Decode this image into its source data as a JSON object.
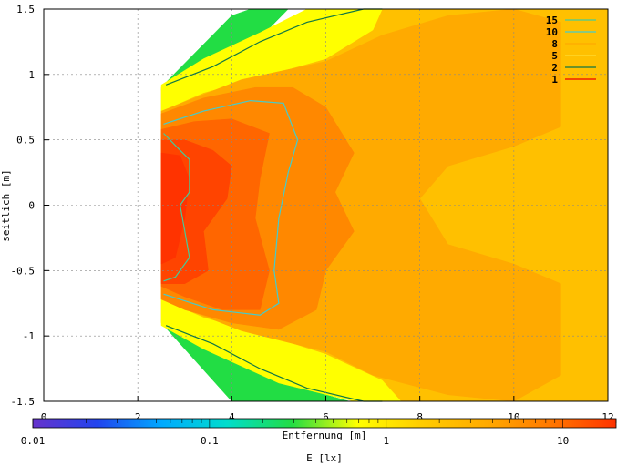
{
  "chart_data": {
    "type": "heatmap",
    "xlabel": "Entfernung [m]",
    "ylabel": "seitlich [m]",
    "xlim": [
      0,
      12
    ],
    "ylim": [
      -1.5,
      1.5
    ],
    "x_ticks": [
      "0",
      "2",
      "4",
      "6",
      "8",
      "10",
      "12"
    ],
    "x_tick_values": [
      0,
      2,
      4,
      6,
      8,
      10,
      12
    ],
    "y_ticks": [
      "1.5",
      "1",
      "0.5",
      "0",
      "-0.5",
      "-1",
      "-1.5"
    ],
    "y_tick_values": [
      1.5,
      1,
      0.5,
      0,
      -0.5,
      -1,
      -1.5
    ],
    "grid": true,
    "legend_position": "top-right",
    "legend": [
      {
        "label": "15",
        "color": "#44cc99"
      },
      {
        "label": "10",
        "color": "#44cccc"
      },
      {
        "label": "8",
        "color": "#ffaa00"
      },
      {
        "label": "5",
        "color": "#ffdd33"
      },
      {
        "label": "2",
        "color": "#117744"
      },
      {
        "label": "1",
        "color": "#ee0000"
      }
    ],
    "colorbar": {
      "label": "E [lx]",
      "scale": "log",
      "range": [
        0.01,
        20
      ],
      "ticks": [
        "0.01",
        "0.1",
        "1",
        "10"
      ],
      "tick_values": [
        0.01,
        0.1,
        1,
        10
      ],
      "colors": [
        "#6633cc",
        "#2244ee",
        "#00aaff",
        "#00ddcc",
        "#22dd44",
        "#ffff00",
        "#ffcc00",
        "#ffaa00",
        "#ff7700",
        "#ff3300"
      ]
    },
    "regions": [
      {
        "name": "green",
        "color": "#22dd44",
        "points": [
          [
            2.6,
            0.94
          ],
          [
            4.0,
            1.45
          ],
          [
            4.4,
            1.5
          ],
          [
            5.2,
            1.5
          ],
          [
            4.6,
            1.28
          ],
          [
            3.6,
            1.08
          ],
          [
            2.5,
            0.88
          ]
        ]
      },
      {
        "name": "green-bottom",
        "color": "#22dd44",
        "points": [
          [
            2.5,
            -0.88
          ],
          [
            3.4,
            -1.08
          ],
          [
            5.0,
            -1.35
          ],
          [
            6.5,
            -1.5
          ],
          [
            4.0,
            -1.5
          ],
          [
            2.6,
            -0.94
          ]
        ]
      },
      {
        "name": "yellow",
        "color": "#ffff00",
        "points": [
          [
            2.5,
            0.92
          ],
          [
            3.4,
            1.12
          ],
          [
            4.6,
            1.32
          ],
          [
            5.6,
            1.5
          ],
          [
            7.2,
            1.5
          ],
          [
            7.0,
            1.34
          ],
          [
            6.0,
            1.12
          ],
          [
            4.6,
            0.98
          ],
          [
            3.4,
            0.86
          ],
          [
            2.5,
            0.72
          ]
        ]
      },
      {
        "name": "yellow-bottom",
        "color": "#ffff00",
        "points": [
          [
            2.5,
            -0.72
          ],
          [
            3.4,
            -0.86
          ],
          [
            4.6,
            -0.98
          ],
          [
            6.0,
            -1.14
          ],
          [
            7.2,
            -1.34
          ],
          [
            7.6,
            -1.5
          ],
          [
            6.6,
            -1.5
          ],
          [
            5.0,
            -1.36
          ],
          [
            3.4,
            -1.1
          ],
          [
            2.5,
            -0.92
          ]
        ]
      },
      {
        "name": "light-orange",
        "color": "#ffc000",
        "points": [
          [
            2.5,
            0.9
          ],
          [
            4.5,
            1.2
          ],
          [
            7.0,
            1.5
          ],
          [
            12.0,
            1.5
          ],
          [
            12.0,
            -1.5
          ],
          [
            7.4,
            -1.5
          ],
          [
            4.5,
            -1.2
          ],
          [
            2.5,
            -0.9
          ]
        ]
      },
      {
        "name": "orange",
        "color": "#ffaa00",
        "points": [
          [
            2.5,
            0.72
          ],
          [
            4.2,
            0.96
          ],
          [
            6.0,
            1.1
          ],
          [
            7.2,
            1.3
          ],
          [
            8.6,
            1.45
          ],
          [
            10.0,
            1.5
          ],
          [
            11.0,
            1.4
          ],
          [
            11.0,
            0.6
          ],
          [
            10.0,
            0.45
          ],
          [
            8.6,
            0.3
          ],
          [
            8.0,
            0.05
          ],
          [
            8.6,
            -0.3
          ],
          [
            10.0,
            -0.45
          ],
          [
            11.0,
            -0.6
          ],
          [
            11.0,
            -1.3
          ],
          [
            10.0,
            -1.5
          ],
          [
            8.6,
            -1.45
          ],
          [
            7.0,
            -1.3
          ],
          [
            6.0,
            -1.12
          ],
          [
            4.2,
            -0.96
          ],
          [
            2.5,
            -0.72
          ]
        ]
      },
      {
        "name": "dark-orange",
        "color": "#ff8800",
        "points": [
          [
            2.5,
            0.7
          ],
          [
            3.4,
            0.82
          ],
          [
            4.5,
            0.9
          ],
          [
            5.3,
            0.9
          ],
          [
            6.0,
            0.75
          ],
          [
            6.6,
            0.4
          ],
          [
            6.2,
            0.1
          ],
          [
            6.6,
            -0.2
          ],
          [
            6.0,
            -0.5
          ],
          [
            5.8,
            -0.8
          ],
          [
            5.0,
            -0.95
          ],
          [
            4.0,
            -0.9
          ],
          [
            3.0,
            -0.8
          ],
          [
            2.5,
            -0.72
          ]
        ]
      },
      {
        "name": "red-orange",
        "color": "#ff6600",
        "points": [
          [
            2.5,
            0.58
          ],
          [
            3.2,
            0.64
          ],
          [
            4.0,
            0.66
          ],
          [
            4.8,
            0.55
          ],
          [
            4.6,
            0.2
          ],
          [
            4.5,
            -0.1
          ],
          [
            4.8,
            -0.5
          ],
          [
            4.6,
            -0.8
          ],
          [
            3.8,
            -0.8
          ],
          [
            3.0,
            -0.7
          ],
          [
            2.5,
            -0.62
          ]
        ]
      },
      {
        "name": "red",
        "color": "#ff4400",
        "points": [
          [
            2.5,
            0.5
          ],
          [
            3.0,
            0.5
          ],
          [
            3.6,
            0.42
          ],
          [
            4.0,
            0.3
          ],
          [
            3.9,
            0.05
          ],
          [
            3.4,
            -0.2
          ],
          [
            3.5,
            -0.5
          ],
          [
            3.0,
            -0.6
          ],
          [
            2.5,
            -0.6
          ]
        ]
      },
      {
        "name": "deep-red",
        "color": "#ff3300",
        "points": [
          [
            2.5,
            0.4
          ],
          [
            2.9,
            0.38
          ],
          [
            3.1,
            0.2
          ],
          [
            3.0,
            -0.1
          ],
          [
            2.8,
            -0.4
          ],
          [
            2.5,
            -0.45
          ]
        ]
      }
    ],
    "contours": [
      {
        "label": "15",
        "color": "#44cc99",
        "points": [
          [
            2.55,
            0.55
          ],
          [
            2.9,
            0.42
          ],
          [
            3.1,
            0.35
          ],
          [
            3.1,
            0.1
          ],
          [
            2.9,
            0.0
          ],
          [
            3.0,
            -0.2
          ],
          [
            3.1,
            -0.4
          ],
          [
            2.8,
            -0.55
          ],
          [
            2.55,
            -0.58
          ]
        ]
      },
      {
        "label": "10",
        "color": "#44cccc",
        "points": [
          [
            2.55,
            0.62
          ],
          [
            3.4,
            0.72
          ],
          [
            4.4,
            0.8
          ],
          [
            5.1,
            0.78
          ],
          [
            5.4,
            0.5
          ],
          [
            5.2,
            0.25
          ],
          [
            5.0,
            -0.1
          ],
          [
            4.9,
            -0.5
          ],
          [
            5.0,
            -0.75
          ],
          [
            4.6,
            -0.84
          ],
          [
            3.6,
            -0.8
          ],
          [
            2.55,
            -0.68
          ]
        ]
      },
      {
        "label": "2",
        "color": "#117744",
        "points": [
          [
            2.6,
            0.92
          ],
          [
            3.6,
            1.06
          ],
          [
            4.6,
            1.25
          ],
          [
            5.6,
            1.4
          ],
          [
            6.8,
            1.5
          ],
          [
            7.2,
            1.5
          ]
        ]
      },
      {
        "label": "2",
        "color": "#117744",
        "points": [
          [
            2.6,
            -0.92
          ],
          [
            3.6,
            -1.06
          ],
          [
            4.6,
            -1.25
          ],
          [
            5.6,
            -1.4
          ],
          [
            6.8,
            -1.5
          ],
          [
            7.2,
            -1.5
          ]
        ]
      }
    ]
  }
}
